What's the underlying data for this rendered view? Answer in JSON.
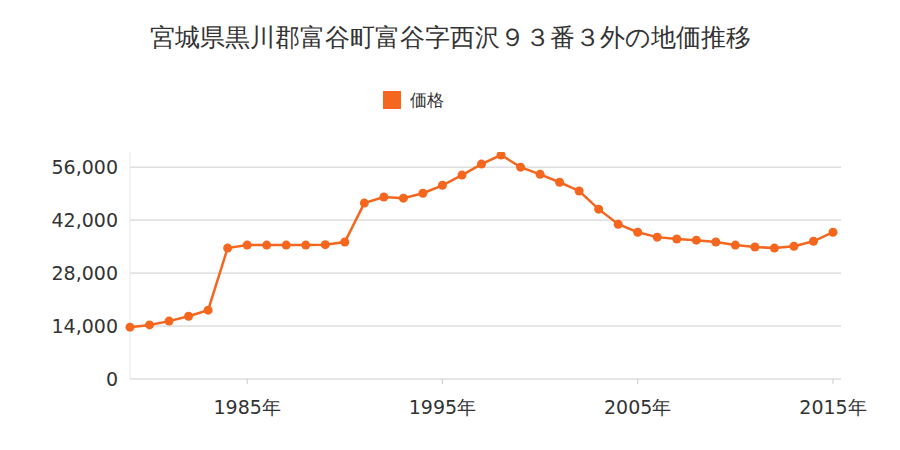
{
  "chart_data": {
    "type": "line",
    "title": "宮城県黒川郡富谷町富谷字西沢９３番３外の地価推移",
    "x": [
      1979,
      1980,
      1981,
      1982,
      1983,
      1984,
      1985,
      1986,
      1987,
      1988,
      1989,
      1990,
      1991,
      1992,
      1993,
      1994,
      1995,
      1996,
      1997,
      1998,
      1999,
      2000,
      2001,
      2002,
      2003,
      2004,
      2005,
      2006,
      2007,
      2008,
      2009,
      2010,
      2011,
      2012,
      2013,
      2014,
      2015
    ],
    "series": [
      {
        "name": "価格",
        "color": "#f5661e",
        "marker": "circle",
        "values": [
          13700,
          14300,
          15300,
          16600,
          18200,
          34600,
          35400,
          35400,
          35400,
          35400,
          35500,
          36200,
          46500,
          48100,
          47800,
          49100,
          51200,
          53900,
          56800,
          59200,
          56000,
          54100,
          52000,
          49700,
          44900,
          40900,
          38800,
          37500,
          37000,
          36700,
          36200,
          35400,
          34900,
          34600,
          35100,
          36400,
          38800
        ]
      }
    ],
    "xlim": [
      1979,
      2015
    ],
    "xticks": [
      {
        "value": 1985,
        "label": "1985年"
      },
      {
        "value": 1995,
        "label": "1995年"
      },
      {
        "value": 2005,
        "label": "2005年"
      },
      {
        "value": 2015,
        "label": "2015年"
      }
    ],
    "ylim": [
      0,
      60000
    ],
    "yticks": [
      {
        "value": 0,
        "label": "0"
      },
      {
        "value": 14000,
        "label": "14,000"
      },
      {
        "value": 28000,
        "label": "28,000"
      },
      {
        "value": 42000,
        "label": "42,000"
      },
      {
        "value": 56000,
        "label": "56,000"
      }
    ],
    "grid": true,
    "legend": "top"
  }
}
